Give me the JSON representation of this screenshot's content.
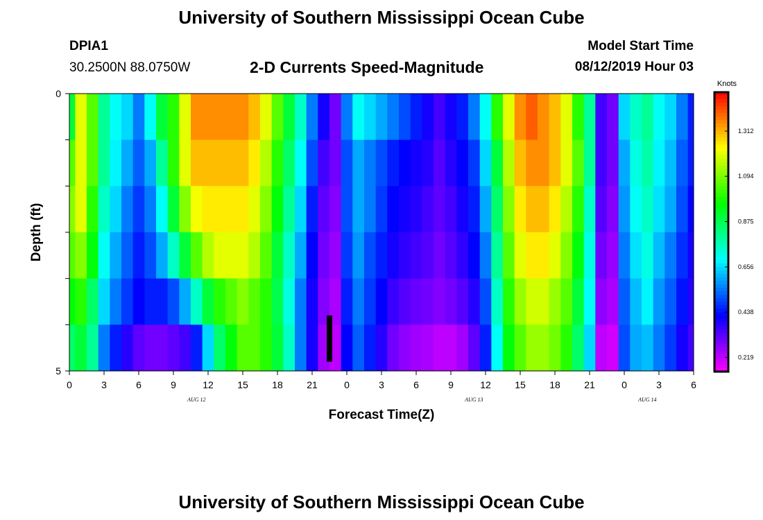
{
  "header": {
    "title": "University of Southern Mississippi Ocean Cube",
    "station_id": "DPIA1",
    "coordinates": "30.2500N 88.0750W",
    "plot_title": "2-D Currents Speed-Magnitude",
    "model_start_label": "Model Start Time",
    "model_start_value": "08/12/2019 Hour 03"
  },
  "footer": {
    "title": "University of Southern Mississippi Ocean Cube"
  },
  "chart_data": {
    "type": "heatmap",
    "title": "2-D Currents Speed-Magnitude",
    "xlabel": "Forecast Time(Z)",
    "ylabel": "Depth (ft)",
    "x_tick_labels": [
      "0",
      "3",
      "6",
      "9",
      "12",
      "15",
      "18",
      "21",
      "0",
      "3",
      "6",
      "9",
      "12",
      "15",
      "18",
      "21",
      "0",
      "3",
      "6"
    ],
    "x_tick_hours": [
      0,
      3,
      6,
      9,
      12,
      15,
      18,
      21,
      24,
      27,
      30,
      33,
      36,
      39,
      42,
      45,
      48,
      51,
      54
    ],
    "date_labels": [
      {
        "label": "AUG 12",
        "hour": 11
      },
      {
        "label": "AUG 13",
        "hour": 35
      },
      {
        "label": "AUG 14",
        "hour": 50
      }
    ],
    "xlim": [
      0,
      54
    ],
    "y_tick_labels": [
      "0",
      "5"
    ],
    "ylim": [
      0,
      5
    ],
    "depth_layers": 5,
    "colorbar": {
      "label": "Knots",
      "tick_labels": [
        "1.312",
        "1.094",
        "0.875",
        "0.656",
        "0.438",
        "0.219"
      ],
      "tick_values": [
        1.312,
        1.094,
        0.875,
        0.656,
        0.438,
        0.219
      ],
      "range": [
        0.15,
        1.5
      ]
    },
    "hours": [
      0,
      1,
      2,
      3,
      4,
      5,
      6,
      7,
      8,
      9,
      10,
      11,
      12,
      13,
      14,
      15,
      16,
      17,
      18,
      19,
      20,
      21,
      22,
      23,
      24,
      25,
      26,
      27,
      28,
      29,
      30,
      31,
      32,
      33,
      34,
      35,
      36,
      37,
      38,
      39,
      40,
      41,
      42,
      43,
      44,
      45,
      46,
      47,
      48,
      49,
      50,
      51,
      52,
      53,
      54
    ],
    "speed_knots": [
      [
        0.9,
        1.2,
        1.05,
        0.8,
        0.7,
        0.65,
        0.55,
        0.7,
        0.9,
        1.0,
        1.2,
        1.35,
        1.35,
        1.35,
        1.35,
        1.35,
        1.3,
        1.2,
        1.05,
        0.9,
        0.75,
        0.55,
        0.4,
        0.3,
        0.55,
        0.7,
        0.65,
        0.6,
        0.55,
        0.5,
        0.45,
        0.4,
        0.35,
        0.4,
        0.45,
        0.55,
        0.7,
        1.0,
        1.2,
        1.35,
        1.4,
        1.35,
        1.3,
        1.2,
        1.0,
        0.8,
        0.35,
        0.3,
        0.65,
        0.75,
        0.8,
        0.7,
        0.65,
        0.55,
        0.45
      ],
      [
        1.05,
        1.2,
        1.05,
        0.8,
        0.68,
        0.6,
        0.52,
        0.6,
        0.8,
        1.0,
        1.2,
        1.3,
        1.3,
        1.3,
        1.3,
        1.3,
        1.25,
        1.15,
        1.0,
        0.85,
        0.7,
        0.5,
        0.35,
        0.3,
        0.5,
        0.6,
        0.55,
        0.5,
        0.45,
        0.42,
        0.4,
        0.38,
        0.33,
        0.38,
        0.42,
        0.48,
        0.65,
        0.9,
        1.15,
        1.3,
        1.35,
        1.35,
        1.3,
        1.2,
        1.05,
        0.8,
        0.35,
        0.3,
        0.6,
        0.72,
        0.78,
        0.68,
        0.62,
        0.52,
        0.45
      ],
      [
        1.1,
        1.2,
        1.0,
        0.75,
        0.65,
        0.55,
        0.48,
        0.55,
        0.7,
        0.9,
        1.1,
        1.22,
        1.25,
        1.25,
        1.25,
        1.25,
        1.2,
        1.1,
        0.95,
        0.8,
        0.65,
        0.45,
        0.32,
        0.28,
        0.5,
        0.6,
        0.55,
        0.48,
        0.42,
        0.4,
        0.38,
        0.35,
        0.32,
        0.35,
        0.4,
        0.45,
        0.6,
        0.85,
        1.1,
        1.25,
        1.3,
        1.3,
        1.25,
        1.15,
        1.0,
        0.75,
        0.33,
        0.28,
        0.58,
        0.7,
        0.75,
        0.66,
        0.6,
        0.5,
        0.42
      ],
      [
        1.05,
        1.1,
        0.95,
        0.7,
        0.6,
        0.52,
        0.45,
        0.5,
        0.6,
        0.75,
        0.9,
        1.05,
        1.15,
        1.2,
        1.2,
        1.2,
        1.15,
        1.05,
        0.9,
        0.75,
        0.6,
        0.42,
        0.3,
        0.26,
        0.48,
        0.58,
        0.5,
        0.45,
        0.4,
        0.37,
        0.35,
        0.33,
        0.3,
        0.33,
        0.37,
        0.42,
        0.55,
        0.8,
        1.05,
        1.2,
        1.25,
        1.25,
        1.2,
        1.1,
        0.95,
        0.72,
        0.3,
        0.26,
        0.55,
        0.66,
        0.72,
        0.62,
        0.55,
        0.47,
        0.4
      ],
      [
        0.95,
        1.0,
        0.85,
        0.65,
        0.55,
        0.48,
        0.42,
        0.45,
        0.45,
        0.5,
        0.6,
        0.75,
        0.9,
        1.0,
        1.05,
        1.1,
        1.05,
        1.0,
        0.88,
        0.72,
        0.55,
        0.4,
        0.28,
        0.24,
        0.45,
        0.55,
        0.48,
        0.42,
        0.36,
        0.33,
        0.31,
        0.3,
        0.28,
        0.3,
        0.33,
        0.38,
        0.5,
        0.75,
        1.0,
        1.12,
        1.18,
        1.18,
        1.12,
        1.05,
        0.9,
        0.7,
        0.27,
        0.24,
        0.52,
        0.62,
        0.68,
        0.58,
        0.52,
        0.44,
        0.38
      ],
      [
        0.85,
        0.9,
        0.8,
        0.55,
        0.45,
        0.38,
        0.32,
        0.3,
        0.3,
        0.32,
        0.35,
        0.45,
        0.65,
        0.85,
        0.95,
        1.05,
        1.05,
        1.0,
        0.9,
        0.75,
        0.55,
        0.4,
        0.25,
        0.22,
        0.42,
        0.52,
        0.45,
        0.38,
        0.3,
        0.27,
        0.25,
        0.24,
        0.22,
        0.22,
        0.25,
        0.32,
        0.45,
        0.7,
        0.95,
        1.05,
        1.12,
        1.12,
        1.08,
        1.0,
        0.85,
        0.65,
        0.22,
        0.2,
        0.5,
        0.6,
        0.62,
        0.55,
        0.48,
        0.4,
        0.35
      ]
    ],
    "missing_value_marker": {
      "hour": 22.5,
      "depth": 4.5
    }
  }
}
